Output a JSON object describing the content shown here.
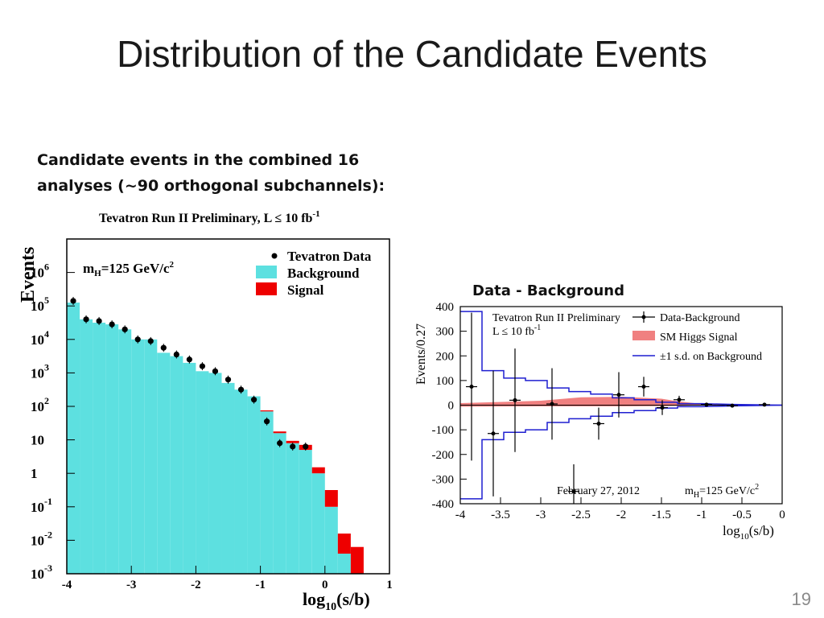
{
  "slide": {
    "title": "Distribution of the Candidate Events",
    "subtitle": "Candidate events in the combined 16 analyses (~90 orthogonal subchannels):",
    "page_number": "19"
  },
  "colors": {
    "background_fill": "#5de0e0",
    "signal_fill": "#ee0000",
    "data_marker": "#000000",
    "sd_band": "#1f1fd0",
    "higgs_band": "#f08080"
  },
  "chart_data": [
    {
      "type": "bar",
      "id": "main",
      "title": "Tevatron Run II Preliminary, L ≤ 10 fb",
      "title_sup": "-1",
      "annotation": "m",
      "annotation_sub": "H",
      "annotation_rest": "=125 GeV/c",
      "annotation_sup": "2",
      "xlabel": "log",
      "xlabel_sub": "10",
      "xlabel_rest": "(s/b)",
      "ylabel": "Events",
      "y_scale": "log",
      "xlim": [
        -4,
        1
      ],
      "ylim_log10": [
        -3,
        7
      ],
      "x_ticks": [
        "-4",
        "-3",
        "-2",
        "-1",
        "0",
        "1"
      ],
      "y_ticks": [
        {
          "base": "10",
          "exp": "6",
          "log": 6
        },
        {
          "base": "10",
          "exp": "5",
          "log": 5
        },
        {
          "base": "10",
          "exp": "4",
          "log": 4
        },
        {
          "base": "10",
          "exp": "3",
          "log": 3
        },
        {
          "base": "10",
          "exp": "2",
          "log": 2
        },
        {
          "base": "10",
          "exp": "",
          "log": 1
        },
        {
          "base": "1",
          "exp": "",
          "log": 0
        },
        {
          "base": "10",
          "exp": "-1",
          "log": -1
        },
        {
          "base": "10",
          "exp": "-2",
          "log": -2
        },
        {
          "base": "10",
          "exp": "-3",
          "log": -3
        }
      ],
      "legend": [
        {
          "label": "Tevatron Data",
          "kind": "marker"
        },
        {
          "label": "Background",
          "kind": "box-background"
        },
        {
          "label": "Signal",
          "kind": "box-signal"
        }
      ],
      "bin_width": 0.2,
      "bins_x": [
        -4.0,
        -3.8,
        -3.6,
        -3.4,
        -3.2,
        -3.0,
        -2.8,
        -2.6,
        -2.4,
        -2.2,
        -2.0,
        -1.8,
        -1.6,
        -1.4,
        -1.2,
        -1.0,
        -0.8,
        -0.6,
        -0.4,
        -0.2,
        0.0,
        0.2,
        0.4
      ],
      "background_log10": [
        5.1,
        4.6,
        4.5,
        4.45,
        4.3,
        4.0,
        4.0,
        3.6,
        3.5,
        3.3,
        3.05,
        3.0,
        2.7,
        2.5,
        2.3,
        1.85,
        1.2,
        0.9,
        0.7,
        0.0,
        -1.0,
        -2.4,
        -3.0
      ],
      "signal_top_log10": [
        5.1,
        4.6,
        4.5,
        4.45,
        4.3,
        4.0,
        4.0,
        3.6,
        3.5,
        3.3,
        3.05,
        3.0,
        2.7,
        2.5,
        2.3,
        1.88,
        1.25,
        0.97,
        0.85,
        0.18,
        -0.5,
        -1.8,
        -2.2
      ],
      "data_x": [
        -3.9,
        -3.7,
        -3.5,
        -3.3,
        -3.1,
        -2.9,
        -2.7,
        -2.5,
        -2.3,
        -2.1,
        -1.9,
        -1.7,
        -1.5,
        -1.3,
        -1.1,
        -0.9,
        -0.7,
        -0.5,
        -0.3
      ],
      "data_log10": [
        5.15,
        4.6,
        4.55,
        4.45,
        4.3,
        4.0,
        3.95,
        3.75,
        3.55,
        3.4,
        3.2,
        3.05,
        2.8,
        2.5,
        2.2,
        1.55,
        0.9,
        0.8,
        0.8
      ]
    },
    {
      "type": "scatter",
      "id": "inset",
      "panel_title": "Data - Background",
      "text_line1": "Tevatron Run II Preliminary",
      "text_line2": "L ≤ 10 fb",
      "text_line2_sup": "-1",
      "date": "February 27, 2012",
      "annotation": "m",
      "annotation_sub": "H",
      "annotation_rest": "=125 GeV/c",
      "annotation_sup": "2",
      "xlabel": "log",
      "xlabel_sub": "10",
      "xlabel_rest": "(s/b)",
      "ylabel": "Events/0.27",
      "xlim": [
        -4,
        0
      ],
      "ylim": [
        -400,
        400
      ],
      "x_ticks": [
        "-4",
        "-3.5",
        "-3",
        "-2.5",
        "-2",
        "-1.5",
        "-1",
        "-0.5",
        "0"
      ],
      "y_ticks": [
        "400",
        "300",
        "200",
        "100",
        "0",
        "-100",
        "-200",
        "-300",
        "-400"
      ],
      "legend": [
        {
          "label": "Data-Background",
          "kind": "point"
        },
        {
          "label": "SM Higgs Signal",
          "kind": "band"
        },
        {
          "label": "±1 s.d. on Background",
          "kind": "line"
        }
      ],
      "points": [
        {
          "x": -3.86,
          "y": 75,
          "err": 300
        },
        {
          "x": -3.59,
          "y": -115,
          "err": 255
        },
        {
          "x": -3.32,
          "y": 20,
          "err": 210
        },
        {
          "x": -2.86,
          "y": 5,
          "err": 145
        },
        {
          "x": -2.59,
          "y": -350,
          "err": 110
        },
        {
          "x": -2.28,
          "y": -75,
          "err": 65
        },
        {
          "x": -2.03,
          "y": 42,
          "err": 92
        },
        {
          "x": -1.72,
          "y": 75,
          "err": 40
        },
        {
          "x": -1.49,
          "y": -10,
          "err": 30
        },
        {
          "x": -1.28,
          "y": 22,
          "err": 16
        },
        {
          "x": -0.94,
          "y": 2,
          "err": 4
        },
        {
          "x": -0.62,
          "y": -2,
          "err": 3
        },
        {
          "x": -0.22,
          "y": 2,
          "err": 3
        }
      ],
      "sd_upper": [
        [
          -4.0,
          380
        ],
        [
          -3.73,
          380
        ],
        [
          -3.73,
          140
        ],
        [
          -3.46,
          140
        ],
        [
          -3.46,
          110
        ],
        [
          -3.19,
          110
        ],
        [
          -3.19,
          100
        ],
        [
          -2.92,
          100
        ],
        [
          -2.92,
          70
        ],
        [
          -2.65,
          70
        ],
        [
          -2.65,
          55
        ],
        [
          -2.38,
          55
        ],
        [
          -2.38,
          45
        ],
        [
          -2.11,
          45
        ],
        [
          -2.11,
          30
        ],
        [
          -1.84,
          30
        ],
        [
          -1.84,
          22
        ],
        [
          -1.57,
          22
        ],
        [
          -1.57,
          12
        ],
        [
          -1.3,
          12
        ],
        [
          -1.3,
          6
        ],
        [
          -1.0,
          6
        ],
        [
          -0.6,
          3
        ],
        [
          0.0,
          0
        ]
      ],
      "sd_lower": [
        [
          -4.0,
          -380
        ],
        [
          -3.73,
          -380
        ],
        [
          -3.73,
          -140
        ],
        [
          -3.46,
          -140
        ],
        [
          -3.46,
          -110
        ],
        [
          -3.19,
          -110
        ],
        [
          -3.19,
          -100
        ],
        [
          -2.92,
          -100
        ],
        [
          -2.92,
          -70
        ],
        [
          -2.65,
          -70
        ],
        [
          -2.65,
          -55
        ],
        [
          -2.38,
          -55
        ],
        [
          -2.38,
          -45
        ],
        [
          -2.11,
          -45
        ],
        [
          -2.11,
          -30
        ],
        [
          -1.84,
          -30
        ],
        [
          -1.84,
          -22
        ],
        [
          -1.57,
          -22
        ],
        [
          -1.57,
          -12
        ],
        [
          -1.3,
          -12
        ],
        [
          -1.3,
          -6
        ],
        [
          -1.0,
          -6
        ],
        [
          -0.6,
          -3
        ],
        [
          0.0,
          0
        ]
      ],
      "higgs_upper": [
        [
          -4.0,
          8
        ],
        [
          -3.0,
          18
        ],
        [
          -2.5,
          32
        ],
        [
          -2.0,
          34
        ],
        [
          -1.5,
          26
        ],
        [
          -1.3,
          16
        ],
        [
          -1.0,
          5
        ],
        [
          0.0,
          1
        ]
      ],
      "higgs_lower": [
        [
          -4.0,
          -6
        ],
        [
          -3.0,
          -5
        ],
        [
          -2.5,
          -5
        ],
        [
          -2.0,
          -5
        ],
        [
          -1.5,
          -4
        ],
        [
          -1.3,
          -3
        ],
        [
          -1.0,
          -1
        ],
        [
          0.0,
          0
        ]
      ]
    }
  ]
}
